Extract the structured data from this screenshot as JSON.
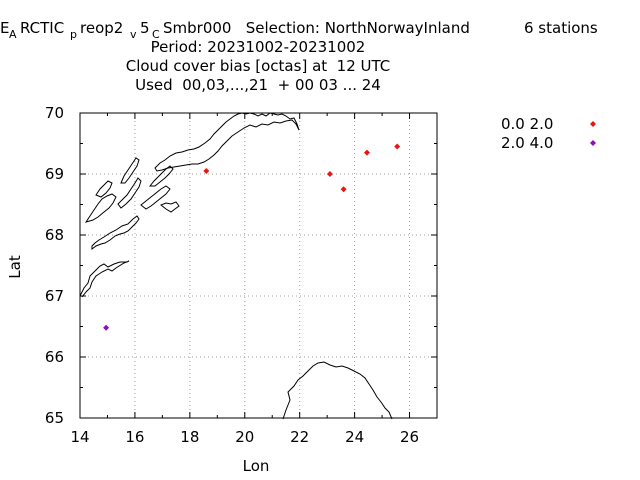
{
  "header": {
    "title_prefix": "E",
    "title_sub1": "A",
    "title_mid1": "RCTIC",
    "title_sub2": "p",
    "title_mid2": "reop2",
    "title_sub3": "v",
    "title_mid3": "5",
    "title_sub4": "C",
    "title_mid4": "Smbr000   Selection: NorthNorwayInland",
    "stations": "6 stations",
    "period": "Period: 20231002-20231002",
    "subtitle": "Cloud cover bias [octas] at  12 UTC",
    "used": "Used  00,03,...,21  + 00 03 ... 24"
  },
  "colors": {
    "red": "#e8170f",
    "purple": "#8e0fbd",
    "grid": "#a0a0a0",
    "coast": "#000000"
  },
  "chart_data": {
    "type": "scatter",
    "xlabel": "Lon",
    "ylabel": "Lat",
    "xlim": [
      14,
      27
    ],
    "ylim": [
      65,
      70
    ],
    "x_ticks": [
      "14",
      "16",
      "18",
      "20",
      "22",
      "24",
      "26"
    ],
    "y_ticks": [
      "65",
      "66",
      "67",
      "68",
      "69",
      "70"
    ],
    "grid": true,
    "legend_position": "top-right",
    "series": [
      {
        "name": "0.0 2.0",
        "color": "#e8170f",
        "points": [
          [
            18.6,
            69.05
          ],
          [
            23.1,
            69.0
          ],
          [
            23.6,
            68.75
          ],
          [
            24.45,
            69.35
          ],
          [
            25.55,
            69.45
          ]
        ]
      },
      {
        "name": "2.0 4.0",
        "color": "#8e0fbd",
        "points": [
          [
            14.95,
            66.48
          ]
        ]
      }
    ]
  }
}
